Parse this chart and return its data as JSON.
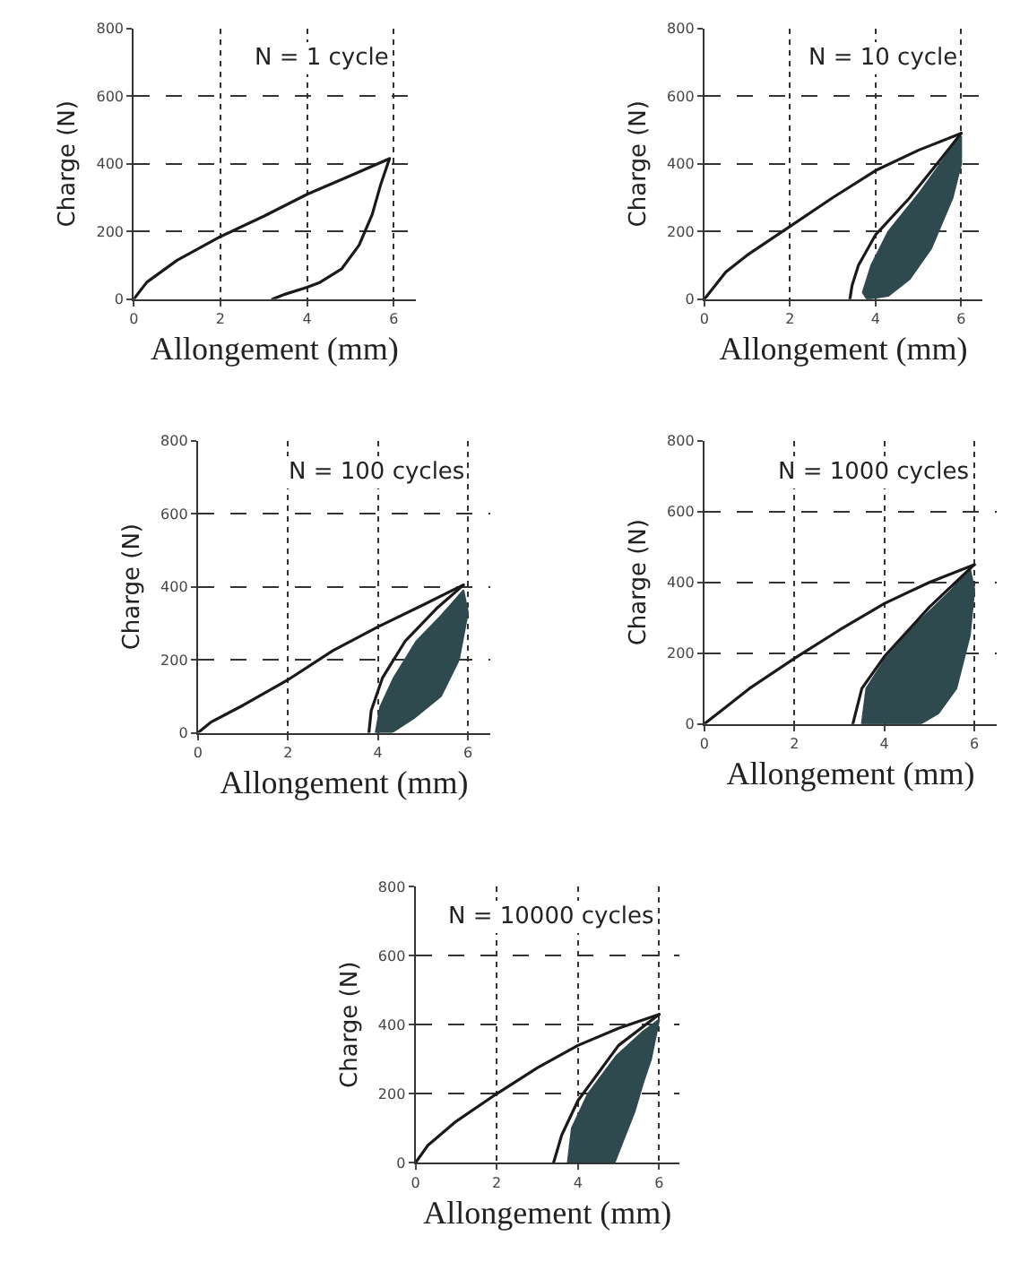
{
  "chart_data": [
    {
      "type": "line",
      "xlabel": "Allongement (mm)",
      "ylabel": "Charge (N)",
      "annotations": [
        "N = 1 cycle"
      ],
      "xlim": [
        0,
        6.5
      ],
      "ylim": [
        0,
        800
      ],
      "xticks": [
        0,
        2,
        4,
        6
      ],
      "yticks": [
        0,
        200,
        400,
        600,
        800
      ],
      "grid": true,
      "series": [
        {
          "color": "#1a1a1a",
          "x": [
            0,
            0.3,
            1,
            2,
            3,
            4,
            5,
            5.9
          ],
          "values": [
            0,
            50,
            115,
            185,
            245,
            310,
            365,
            415
          ]
        },
        {
          "color": "#1a1a1a",
          "x": [
            5.9,
            5.7,
            5.5,
            5.2,
            4.8,
            4.3,
            4,
            3.5,
            3.2
          ],
          "values": [
            415,
            340,
            250,
            160,
            90,
            50,
            35,
            15,
            0
          ]
        }
      ]
    },
    {
      "type": "line",
      "xlabel": "Allongement (mm)",
      "ylabel": "Charge (N)",
      "annotations": [
        "N = 10 cycle"
      ],
      "xlim": [
        0,
        6.5
      ],
      "ylim": [
        0,
        800
      ],
      "xticks": [
        0,
        2,
        4,
        6
      ],
      "yticks": [
        0,
        200,
        400,
        600,
        800
      ],
      "grid": true,
      "series": [
        {
          "color": "#1a1a1a",
          "x": [
            0,
            0.5,
            1,
            2,
            3,
            4,
            5,
            6
          ],
          "values": [
            0,
            80,
            130,
            215,
            300,
            380,
            440,
            490
          ]
        },
        {
          "color": "#1a1a1a",
          "x": [
            6,
            5.5,
            4.8,
            4,
            3.6,
            3.45,
            3.4
          ],
          "values": [
            490,
            410,
            300,
            190,
            100,
            40,
            0
          ]
        },
        {
          "type": "area",
          "color": "#2f4a4f",
          "x": [
            3.7,
            3.9,
            4.3,
            5,
            5.8,
            6,
            6,
            5.8,
            5.3,
            4.8,
            4.3,
            3.8,
            3.7
          ],
          "values": [
            20,
            100,
            200,
            310,
            450,
            480,
            400,
            300,
            150,
            60,
            10,
            0,
            20
          ]
        }
      ]
    },
    {
      "type": "line",
      "xlabel": "Allongement (mm)",
      "ylabel": "Charge (N)",
      "annotations": [
        "N = 100 cycles"
      ],
      "xlim": [
        0,
        6.5
      ],
      "ylim": [
        0,
        800
      ],
      "xticks": [
        0,
        2,
        4,
        6
      ],
      "yticks": [
        0,
        200,
        400,
        600,
        800
      ],
      "grid": true,
      "series": [
        {
          "color": "#1a1a1a",
          "x": [
            0,
            0.3,
            1,
            2,
            3,
            4,
            5,
            5.9
          ],
          "values": [
            0,
            30,
            75,
            145,
            225,
            290,
            350,
            405
          ]
        },
        {
          "color": "#1a1a1a",
          "x": [
            5.9,
            5.3,
            4.6,
            4.1,
            3.85,
            3.8
          ],
          "values": [
            405,
            340,
            250,
            150,
            60,
            0
          ]
        },
        {
          "type": "area",
          "color": "#2f4a4f",
          "x": [
            3.95,
            4.05,
            4.35,
            4.85,
            5.4,
            5.9,
            6,
            5.8,
            5.4,
            4.8,
            4.3,
            3.95
          ],
          "values": [
            0,
            70,
            150,
            250,
            320,
            390,
            330,
            200,
            100,
            40,
            0,
            0
          ]
        }
      ]
    },
    {
      "type": "line",
      "xlabel": "Allongement (mm)",
      "ylabel": "Charge (N)",
      "annotations": [
        "N = 1000 cycles"
      ],
      "xlim": [
        0,
        6.5
      ],
      "ylim": [
        0,
        800
      ],
      "xticks": [
        0,
        2,
        4,
        6
      ],
      "yticks": [
        0,
        200,
        400,
        600,
        800
      ],
      "grid": true,
      "series": [
        {
          "color": "#1a1a1a",
          "x": [
            0,
            0.5,
            1,
            2,
            3,
            4,
            5,
            6
          ],
          "values": [
            0,
            50,
            100,
            185,
            265,
            340,
            400,
            450
          ]
        },
        {
          "color": "#1a1a1a",
          "x": [
            6,
            5,
            4,
            3.5,
            3.3
          ],
          "values": [
            450,
            330,
            190,
            100,
            0
          ]
        },
        {
          "type": "area",
          "color": "#2f4a4f",
          "x": [
            3.5,
            3.6,
            4,
            4.7,
            5.5,
            5.9,
            6,
            5.9,
            5.6,
            5.2,
            4.8,
            3.5
          ],
          "values": [
            0,
            100,
            180,
            280,
            380,
            440,
            380,
            250,
            100,
            30,
            0,
            0
          ]
        }
      ]
    },
    {
      "type": "line",
      "xlabel": "Allongement (mm)",
      "ylabel": "Charge (N)",
      "annotations": [
        "N = 10000 cycles"
      ],
      "xlim": [
        0,
        6.5
      ],
      "ylim": [
        0,
        800
      ],
      "xticks": [
        0,
        2,
        4,
        6
      ],
      "yticks": [
        0,
        200,
        400,
        600,
        800
      ],
      "grid": true,
      "series": [
        {
          "color": "#1a1a1a",
          "x": [
            0,
            0.3,
            1,
            2,
            3,
            4,
            5,
            6
          ],
          "values": [
            0,
            50,
            120,
            200,
            275,
            340,
            390,
            430
          ]
        },
        {
          "color": "#1a1a1a",
          "x": [
            6,
            5,
            4,
            3.6,
            3.4
          ],
          "values": [
            430,
            340,
            180,
            80,
            0
          ]
        },
        {
          "type": "area",
          "color": "#2f4a4f",
          "x": [
            3.75,
            3.85,
            4.25,
            4.95,
            5.6,
            6,
            5.8,
            5.6,
            5.4,
            5.1,
            4.9,
            3.75
          ],
          "values": [
            0,
            100,
            200,
            310,
            380,
            415,
            300,
            230,
            150,
            60,
            0,
            0
          ]
        }
      ]
    }
  ]
}
